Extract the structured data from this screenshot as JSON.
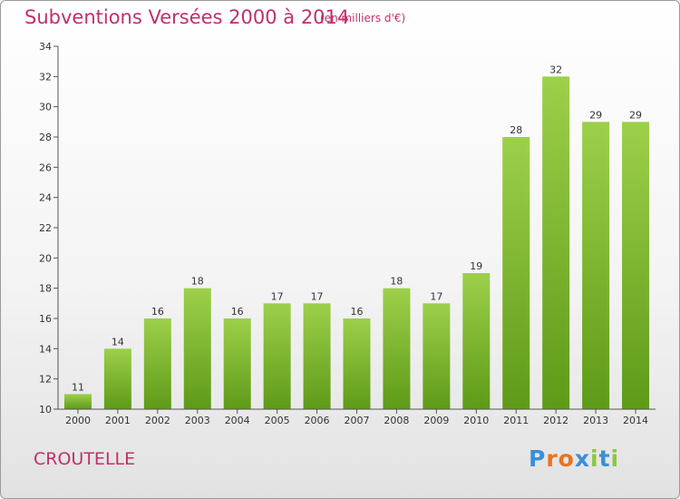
{
  "header": {
    "title": "Subventions Versées 2000 à 2014",
    "subtitle": "(en milliers d'€)"
  },
  "footer": {
    "commune": "CROUTELLE",
    "brand": "Proxiti"
  },
  "colors": {
    "title": "#c0306a",
    "bar_top": "#9dd04a",
    "bar_bottom": "#5e9a18",
    "brand_letters": [
      "#3a8fd8",
      "#e8741c",
      "#e8741c",
      "#3a8fd8",
      "#8cc63f",
      "#3a8fd8",
      "#8cc63f"
    ]
  },
  "chart_data": {
    "type": "bar",
    "categories": [
      "2000",
      "2001",
      "2002",
      "2003",
      "2004",
      "2005",
      "2006",
      "2007",
      "2008",
      "2009",
      "2010",
      "2011",
      "2012",
      "2013",
      "2014"
    ],
    "values": [
      11,
      14,
      16,
      18,
      16,
      17,
      17,
      16,
      18,
      17,
      19,
      28,
      32,
      29,
      29
    ],
    "title": "Subventions Versées 2000 à 2014",
    "subtitle": "(en milliers d'€)",
    "ylim": [
      10,
      34
    ],
    "yticks": [
      10,
      12,
      14,
      16,
      18,
      20,
      22,
      24,
      26,
      28,
      30,
      32,
      34
    ],
    "grid": false,
    "data_labels": true
  }
}
